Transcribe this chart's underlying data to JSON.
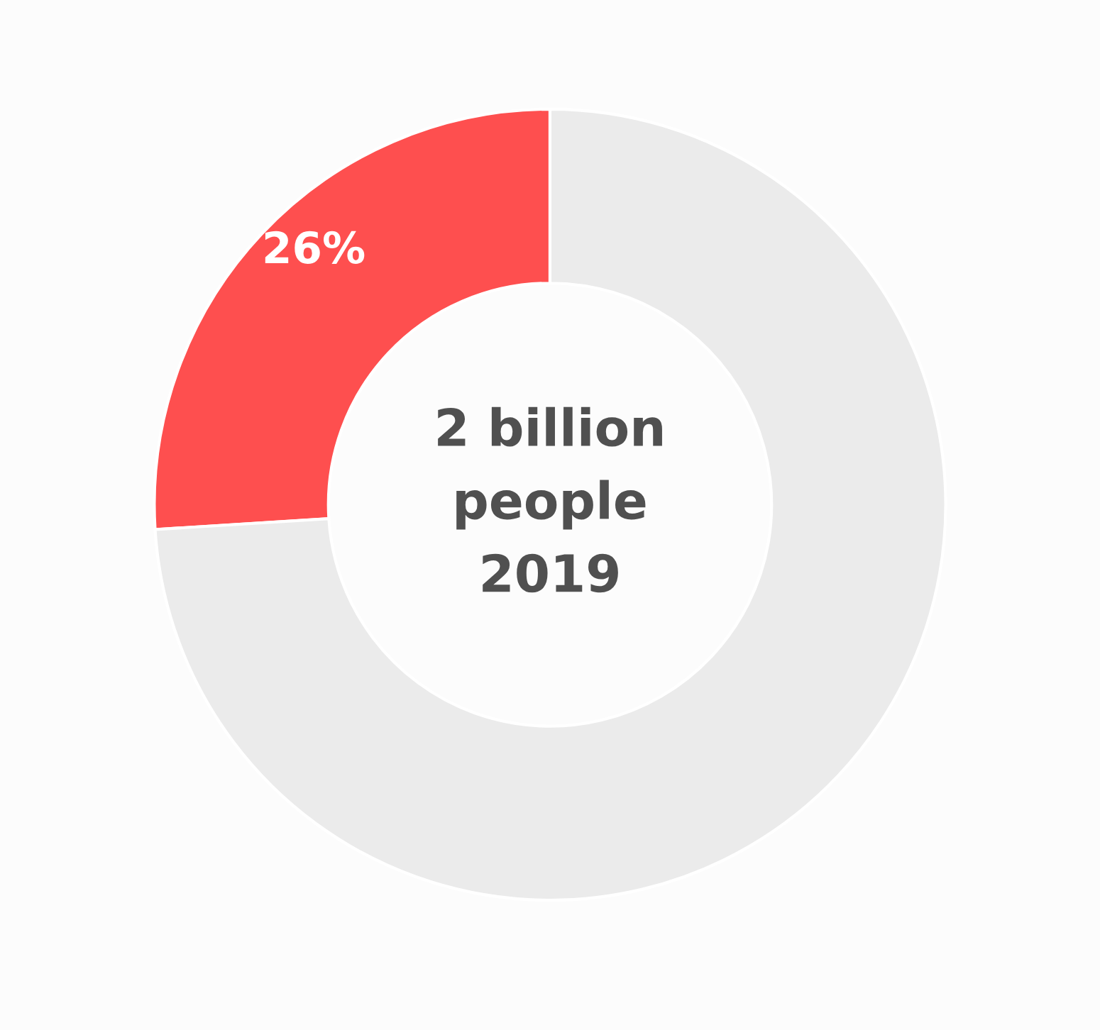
{
  "chart_data": {
    "type": "donut",
    "categories": [
      null,
      null
    ],
    "values": [
      26,
      74
    ],
    "colors": [
      "#fe4f4f",
      "#ebebeb"
    ],
    "value_labels": [
      "26%",
      null
    ],
    "annotations": [
      "2 billion\npeople\n2019"
    ],
    "legend": false
  }
}
